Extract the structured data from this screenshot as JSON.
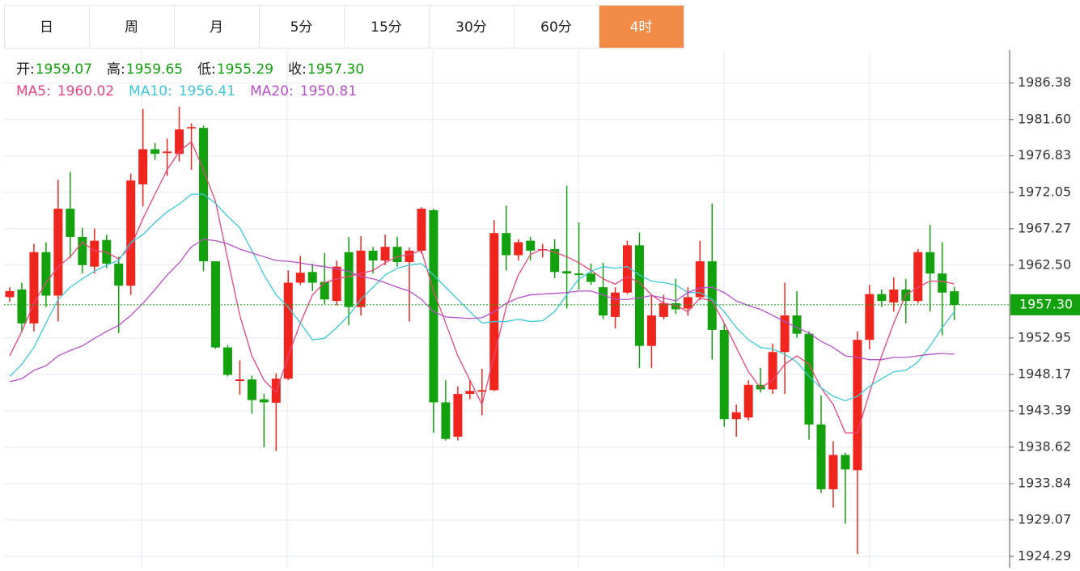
{
  "tabs": {
    "items": [
      "日",
      "周",
      "月",
      "5分",
      "15分",
      "30分",
      "60分",
      "4时"
    ],
    "active": 7
  },
  "chart_data": {
    "type": "candlestick",
    "quote": {
      "labels": [
        "开:",
        "高:",
        "低:",
        "收:"
      ],
      "values": [
        1959.07,
        1959.65,
        1955.29,
        1957.3
      ],
      "value_labels": [
        "1959.07",
        "1959.65",
        "1955.29",
        "1957.30"
      ]
    },
    "up_color": "#f0261e",
    "down_color": "#13a10e",
    "candles": {
      "open": [
        1958.3,
        1959.3,
        1954.85,
        1964.2,
        1958.5,
        1969.9,
        1966.2,
        1962.3,
        1965.8,
        1962.7,
        1959.8,
        1973.1,
        1977.7,
        1977.2,
        1977.1,
        1980.5,
        1980.5,
        1963.0,
        1951.7,
        1947.3,
        1947.5,
        1944.9,
        1944.45,
        1947.6,
        1960.2,
        1961.6,
        1960.3,
        1957.8,
        1964.2,
        1957.0,
        1964.4,
        1963.1,
        1964.9,
        1962.9,
        1964.4,
        1969.7,
        1944.5,
        1940.0,
        1945.6,
        1945.9,
        1946.1,
        1966.7,
        1963.8,
        1965.7,
        1964.5,
        1964.6,
        1961.7,
        1961.4,
        1961.4,
        1959.6,
        1955.7,
        1958.9,
        1965.1,
        1951.9,
        1955.7,
        1957.5,
        1956.8,
        1958.3,
        1963.0,
        1954.0,
        1942.3,
        1942.5,
        1946.8,
        1946.2,
        1951.1,
        1955.9,
        1953.5,
        1941.6,
        1933.1,
        1937.6,
        1935.6,
        1952.7,
        1958.7,
        1957.6,
        1959.3,
        1957.8,
        1964.2,
        1961.4,
        1959.07
      ],
      "high": [
        1959.6,
        1960.2,
        1965.3,
        1965.5,
        1973.7,
        1974.7,
        1967.4,
        1967.3,
        1966.5,
        1963.6,
        1974.5,
        1983.0,
        1978.5,
        1979.1,
        1983.3,
        1981.1,
        1980.8,
        1963.0,
        1952.0,
        1950.0,
        1948.0,
        1945.6,
        1948.3,
        1961.8,
        1963.7,
        1962.7,
        1964.1,
        1963.1,
        1966.2,
        1966.3,
        1964.9,
        1966.5,
        1966.2,
        1964.8,
        1970.1,
        1969.9,
        1947.4,
        1946.6,
        1947.4,
        1948.9,
        1968.4,
        1970.3,
        1965.9,
        1966.2,
        1965.3,
        1965.9,
        1972.9,
        1968.1,
        1962.7,
        1962.8,
        1959.6,
        1965.7,
        1966.8,
        1958.6,
        1958.6,
        1960.7,
        1959.6,
        1965.7,
        1970.6,
        1954.85,
        1944.2,
        1947.4,
        1949.0,
        1952.2,
        1960.2,
        1959.1,
        1953.8,
        1945.4,
        1939.4,
        1937.9,
        1953.8,
        1959.9,
        1959.3,
        1960.9,
        1960.7,
        1964.6,
        1967.8,
        1965.5,
        1959.65
      ],
      "low": [
        1957.7,
        1953.8,
        1953.8,
        1957.0,
        1955.1,
        1963.4,
        1961.4,
        1961.4,
        1962.1,
        1953.6,
        1958.6,
        1970.2,
        1976.3,
        1974.2,
        1976.1,
        1975.0,
        1961.7,
        1951.5,
        1947.9,
        1945.5,
        1943.0,
        1938.6,
        1938.1,
        1947.4,
        1959.9,
        1959.1,
        1957.4,
        1957.2,
        1954.6,
        1955.9,
        1961.4,
        1962.5,
        1962.3,
        1955.1,
        1964.0,
        1940.5,
        1939.5,
        1939.5,
        1944.9,
        1942.8,
        1946.0,
        1961.8,
        1963.1,
        1963.1,
        1963.5,
        1960.8,
        1956.8,
        1959.3,
        1959.9,
        1955.4,
        1954.2,
        1958.7,
        1949.0,
        1949.0,
        1955.4,
        1956.1,
        1955.9,
        1957.9,
        1950.1,
        1941.3,
        1940.0,
        1942.1,
        1945.8,
        1945.6,
        1945.6,
        1952.95,
        1939.6,
        1932.6,
        1930.7,
        1928.6,
        1924.6,
        1951.45,
        1957.0,
        1956.4,
        1954.85,
        1957.5,
        1956.4,
        1953.3,
        1955.29
      ],
      "close": [
        1959.1,
        1954.85,
        1964.2,
        1958.5,
        1969.9,
        1966.2,
        1962.5,
        1965.7,
        1962.7,
        1959.8,
        1973.6,
        1977.7,
        1977.1,
        1977.4,
        1980.3,
        1980.6,
        1963.0,
        1951.7,
        1948.1,
        1947.5,
        1944.8,
        1944.5,
        1947.6,
        1960.2,
        1961.5,
        1960.2,
        1958.0,
        1962.3,
        1957.0,
        1964.4,
        1963.1,
        1964.9,
        1962.9,
        1964.4,
        1969.9,
        1944.5,
        1939.7,
        1945.6,
        1946.0,
        1946.1,
        1966.7,
        1963.8,
        1965.5,
        1964.4,
        1964.6,
        1961.6,
        1961.4,
        1961.2,
        1960.3,
        1955.9,
        1958.9,
        1965.1,
        1951.9,
        1955.9,
        1957.5,
        1956.7,
        1958.3,
        1963.0,
        1954.0,
        1942.3,
        1943.2,
        1946.8,
        1946.2,
        1951.1,
        1955.9,
        1953.5,
        1941.6,
        1933.1,
        1937.6,
        1935.7,
        1952.7,
        1958.7,
        1957.8,
        1959.3,
        1957.8,
        1964.2,
        1961.4,
        1958.9,
        1957.3
      ]
    },
    "ma": [
      {
        "label": "MA5:",
        "color": "#e8457a",
        "values": [
          1950.6,
          1953.8,
          1957.5,
          1960.2,
          1962.3,
          1963.6,
          1965.5,
          1964.4,
          1964.2,
          1963.3,
          1964.9,
          1968.6,
          1971.8,
          1975.0,
          1977.4,
          1978.7,
          1975.0,
          1970.8,
          1963.3,
          1955.9,
          1950.6,
          1947.4,
          1945.8,
          1950.6,
          1954.9,
          1958.6,
          1960.2,
          1960.7,
          1961.0,
          1961.4,
          1961.8,
          1962.8,
          1963.6,
          1963.9,
          1964.4,
          1959.1,
          1954.9,
          1950.6,
          1947.4,
          1944.2,
          1950.6,
          1957.0,
          1961.2,
          1963.9,
          1964.6,
          1964.2,
          1963.6,
          1962.8,
          1961.8,
          1960.7,
          1960.0,
          1961.0,
          1960.2,
          1958.6,
          1957.5,
          1957.2,
          1956.4,
          1958.2,
          1957.8,
          1954.9,
          1951.7,
          1948.5,
          1946.4,
          1947.4,
          1949.5,
          1950.6,
          1949.5,
          1946.4,
          1944.2,
          1940.5,
          1940.5,
          1945.8,
          1950.6,
          1954.9,
          1958.6,
          1959.6,
          1960.4,
          1960.4,
          1960.02
        ]
      },
      {
        "label": "MA10:",
        "color": "#3cc8d6",
        "values": [
          1947.9,
          1949.5,
          1951.7,
          1954.9,
          1958.0,
          1959.6,
          1960.7,
          1961.7,
          1962.5,
          1963.1,
          1965.5,
          1966.5,
          1968.1,
          1969.5,
          1970.5,
          1971.8,
          1971.8,
          1970.6,
          1968.9,
          1967.4,
          1964.4,
          1961.2,
          1958.6,
          1957.0,
          1954.9,
          1952.7,
          1952.9,
          1954.3,
          1955.9,
          1958.0,
          1959.6,
          1961.2,
          1962.1,
          1962.5,
          1962.7,
          1961.2,
          1959.6,
          1958.0,
          1956.4,
          1954.9,
          1955.1,
          1955.1,
          1955.4,
          1955.1,
          1955.2,
          1956.4,
          1958.6,
          1960.7,
          1961.7,
          1962.3,
          1962.1,
          1962.3,
          1961.2,
          1960.4,
          1960.2,
          1959.9,
          1958.9,
          1958.9,
          1958.0,
          1956.4,
          1954.3,
          1952.7,
          1951.7,
          1951.5,
          1950.8,
          1949.8,
          1947.9,
          1946.4,
          1945.3,
          1944.7,
          1945.3,
          1946.6,
          1947.6,
          1948.5,
          1948.7,
          1949.8,
          1951.9,
          1954.3,
          1956.41
        ]
      },
      {
        "label": "MA20:",
        "color": "#b550c8",
        "values": [
          1947.2,
          1947.6,
          1948.7,
          1949.3,
          1950.6,
          1951.3,
          1951.9,
          1952.9,
          1953.8,
          1954.6,
          1955.9,
          1957.5,
          1959.3,
          1961.2,
          1962.8,
          1964.9,
          1965.9,
          1965.7,
          1965.3,
          1964.6,
          1964.1,
          1963.6,
          1963.1,
          1963.0,
          1962.8,
          1962.5,
          1962.3,
          1962.0,
          1961.7,
          1961.0,
          1960.7,
          1960.2,
          1959.6,
          1959.1,
          1958.0,
          1956.4,
          1955.7,
          1955.6,
          1955.5,
          1955.6,
          1956.4,
          1957.5,
          1958.2,
          1958.6,
          1958.7,
          1958.8,
          1958.9,
          1959.1,
          1959.1,
          1958.6,
          1958.0,
          1958.0,
          1958.2,
          1958.5,
          1958.2,
          1957.8,
          1958.9,
          1959.5,
          1959.6,
          1958.9,
          1957.8,
          1957.2,
          1956.7,
          1955.9,
          1955.1,
          1954.3,
          1953.6,
          1952.5,
          1951.7,
          1950.6,
          1950.4,
          1950.1,
          1950.1,
          1950.4,
          1950.4,
          1950.6,
          1950.8,
          1950.9,
          1950.81
        ]
      }
    ],
    "price_line_color": "#13a10e",
    "ylim": [
      1922.8,
      1990.7
    ],
    "yticks": [
      1924.29,
      1929.07,
      1933.84,
      1938.62,
      1943.39,
      1948.17,
      1952.95,
      {
        "value": 1962.5,
        "label": "1962.50"
      },
      1967.27,
      1972.05,
      1976.83,
      {
        "value": 1981.6,
        "label": "1981.60"
      },
      1986.38
    ],
    "grid": true
  }
}
